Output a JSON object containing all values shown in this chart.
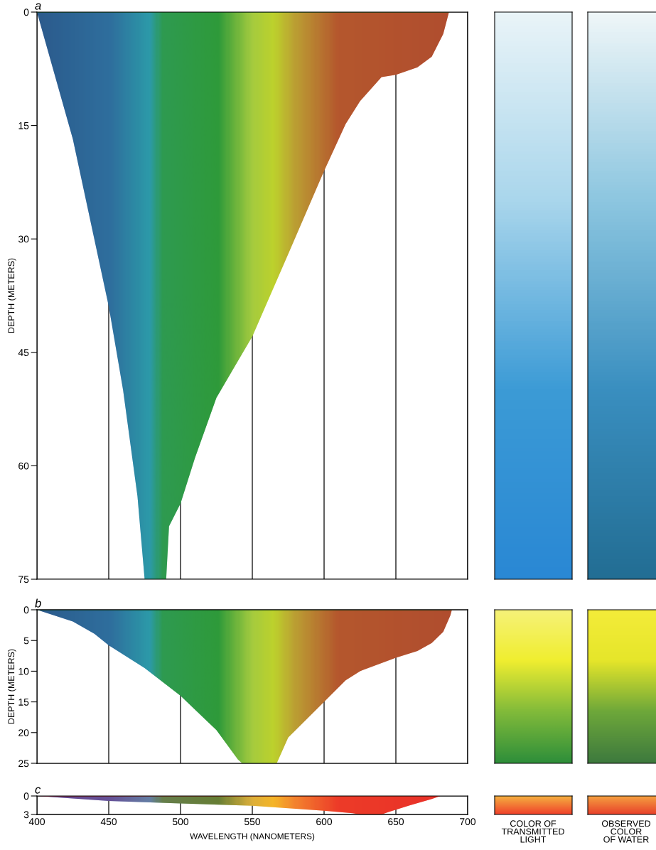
{
  "chart_data": [
    {
      "type": "area",
      "title": "a",
      "ylabel": "DEPTH (METERS)",
      "xlim": [
        400,
        700
      ],
      "xticks": [
        400,
        450,
        500,
        550,
        600,
        650,
        700
      ],
      "ylim": [
        75,
        0
      ],
      "yticks": [
        0,
        15,
        30,
        45,
        60,
        75
      ],
      "grid": "x",
      "tick_labels": "y",
      "series": [
        {
          "color": "#2f9a3a",
          "x": [
            400,
            425,
            450,
            460,
            470,
            475,
            490,
            492,
            500,
            510,
            525,
            550,
            575,
            600,
            615,
            625,
            640,
            650,
            665,
            675,
            683,
            687
          ],
          "values": [
            0,
            16.8,
            38.9,
            50,
            64,
            75,
            75,
            68,
            65,
            59,
            51,
            42.9,
            32,
            21,
            14.8,
            11.8,
            8.6,
            8.3,
            7.3,
            5.9,
            2.9,
            0
          ]
        }
      ]
    },
    {
      "type": "area",
      "title": "b",
      "ylabel": "DEPTH (METERS)",
      "xlim": [
        400,
        700
      ],
      "xticks": [
        400,
        450,
        500,
        550,
        600,
        650,
        700
      ],
      "ylim": [
        25,
        0
      ],
      "yticks": [
        0,
        5,
        10,
        15,
        20,
        25
      ],
      "grid": "x",
      "tick_labels": "y",
      "series": [
        {
          "color": "#2f9a3a",
          "x": [
            400,
            425,
            440,
            450,
            475,
            500,
            525,
            540,
            543,
            567,
            575,
            600,
            615,
            625,
            650,
            665,
            675,
            683,
            688,
            689
          ],
          "values": [
            0,
            1.9,
            3.9,
            5.8,
            9.5,
            14,
            19.6,
            24.4,
            25,
            25,
            20.8,
            15,
            11.5,
            10,
            7.8,
            6.7,
            5.4,
            3.6,
            0.9,
            0
          ]
        }
      ]
    },
    {
      "type": "area",
      "title": "c",
      "xlabel": "WAVELENGTH (NANOMETERS)",
      "xlim": [
        400,
        700
      ],
      "xticks": [
        400,
        450,
        500,
        550,
        600,
        650,
        700
      ],
      "ylim": [
        3,
        0
      ],
      "yticks": [
        0,
        3
      ],
      "grid": "x",
      "series": [
        {
          "color": "#e8402a",
          "x": [
            400,
            425,
            450,
            500,
            550,
            575,
            600,
            620,
            625,
            640,
            645,
            660,
            675,
            681
          ],
          "values": [
            0,
            0.4,
            0.8,
            1.2,
            1.6,
            2.0,
            2.4,
            2.8,
            3,
            3,
            2.6,
            1.5,
            0.5,
            0
          ]
        }
      ],
      "annotations": [
        "COLOR OF\nTRANSMITTED\nLIGHT",
        "OBSERVED\nCOLOR\nOF WATER"
      ]
    }
  ]
}
